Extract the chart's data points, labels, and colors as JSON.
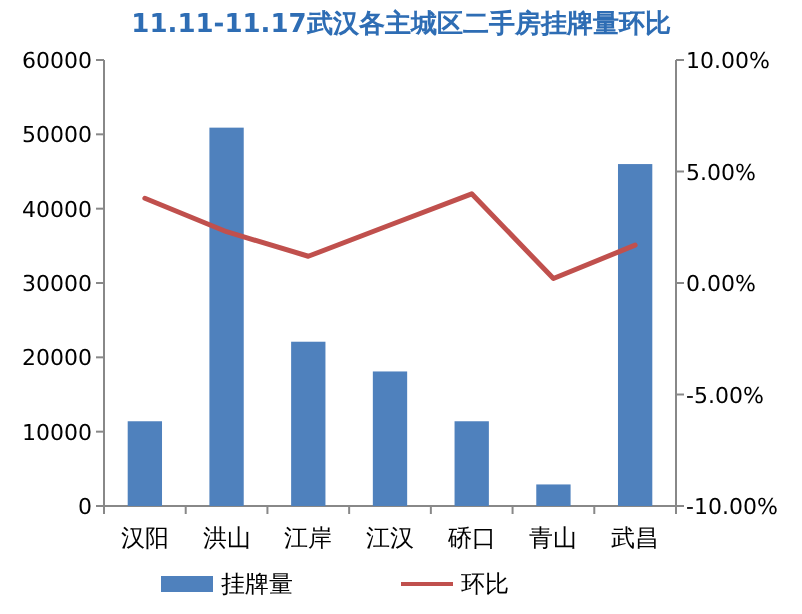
{
  "chart_data": {
    "type": "bar",
    "title": "11.11-11.17武汉各主城区二手房挂牌量环比",
    "categories": [
      "汉阳",
      "洪山",
      "江岸",
      "江汉",
      "硚口",
      "青山",
      "武昌"
    ],
    "series": [
      {
        "name": "挂牌量",
        "color": "#4f81bd",
        "values": [
          11400,
          50900,
          22100,
          18100,
          11400,
          2900,
          46000
        ]
      },
      {
        "name": "环比",
        "type": "line",
        "axis": "y2",
        "color": "#c0504d",
        "values": [
          3.8,
          2.3,
          1.2,
          2.6,
          4.0,
          0.2,
          1.7
        ]
      }
    ],
    "ylim": [
      0,
      60000
    ],
    "yticks": [
      0,
      10000,
      20000,
      30000,
      40000,
      50000,
      60000
    ],
    "y2lim": [
      -10,
      10
    ],
    "y2ticks": [
      {
        "value": -10,
        "label": "-10.00%"
      },
      {
        "value": -5,
        "label": "-5.00%"
      },
      {
        "value": 0,
        "label": "0.00%"
      },
      {
        "value": 5,
        "label": "5.00%"
      },
      {
        "value": 10,
        "label": "10.00%"
      }
    ],
    "legend": "bottom",
    "marker": "none",
    "grid": false
  }
}
